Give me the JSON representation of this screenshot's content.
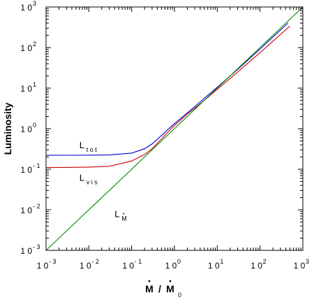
{
  "chart_data": {
    "type": "line",
    "xscale": "log",
    "yscale": "log",
    "xlim": [
      0.001,
      1000
    ],
    "ylim": [
      0.001,
      1000
    ],
    "ylabel": "Luminosity",
    "xlabel": {
      "base": "M",
      "sep": " / ",
      "denom_base": "M",
      "denom_sub": "0"
    },
    "x_ticks": [
      {
        "base": "1 0",
        "exp": "- 3"
      },
      {
        "base": "1 0",
        "exp": "- 2"
      },
      {
        "base": "1 0",
        "exp": "- 1"
      },
      {
        "base": "1 0",
        "exp": "0"
      },
      {
        "base": "1 0",
        "exp": "1"
      },
      {
        "base": "1 0",
        "exp": "2"
      },
      {
        "base": "1 0",
        "exp": "3"
      }
    ],
    "y_ticks": [
      {
        "base": "1 0",
        "exp": "- 3"
      },
      {
        "base": "1 0",
        "exp": "- 2"
      },
      {
        "base": "1 0",
        "exp": "- 1"
      },
      {
        "base": "1 0",
        "exp": "0"
      },
      {
        "base": "1 0",
        "exp": "1"
      },
      {
        "base": "1 0",
        "exp": "2"
      },
      {
        "base": "1 0",
        "exp": "3"
      }
    ],
    "series": [
      {
        "color": "#0000cc",
        "x": [
          0.001,
          0.003,
          0.01,
          0.03,
          0.1,
          0.2,
          0.3,
          0.5,
          0.7,
          1,
          1.5,
          2,
          3,
          5,
          10,
          30,
          100,
          300,
          450
        ],
        "y": [
          0.22,
          0.221,
          0.222,
          0.225,
          0.25,
          0.32,
          0.42,
          0.68,
          0.95,
          1.33,
          1.9,
          2.45,
          3.5,
          5.6,
          10.5,
          29,
          92,
          270,
          400
        ]
      },
      {
        "color": "#cc0000",
        "x": [
          0.001,
          0.003,
          0.01,
          0.03,
          0.1,
          0.2,
          0.3,
          0.5,
          0.7,
          1,
          1.5,
          2,
          3,
          5,
          10,
          30,
          100,
          300,
          500
        ],
        "y": [
          0.11,
          0.111,
          0.113,
          0.118,
          0.16,
          0.23,
          0.32,
          0.56,
          0.82,
          1.2,
          1.75,
          2.3,
          3.2,
          5.0,
          9.3,
          25,
          75,
          210,
          340
        ]
      },
      {
        "color": "#008800",
        "x": [
          0.001,
          1000
        ],
        "y": [
          0.001,
          1000
        ]
      }
    ],
    "annotations": [
      {
        "x": 0.006,
        "y": 0.33,
        "text": "L",
        "sub": "t o t"
      },
      {
        "x": 0.006,
        "y": 0.052,
        "text": "L",
        "sub": "v i s"
      },
      {
        "x": 0.04,
        "y": 0.0066,
        "text": "L",
        "sub": "M",
        "subdot": true
      }
    ]
  }
}
